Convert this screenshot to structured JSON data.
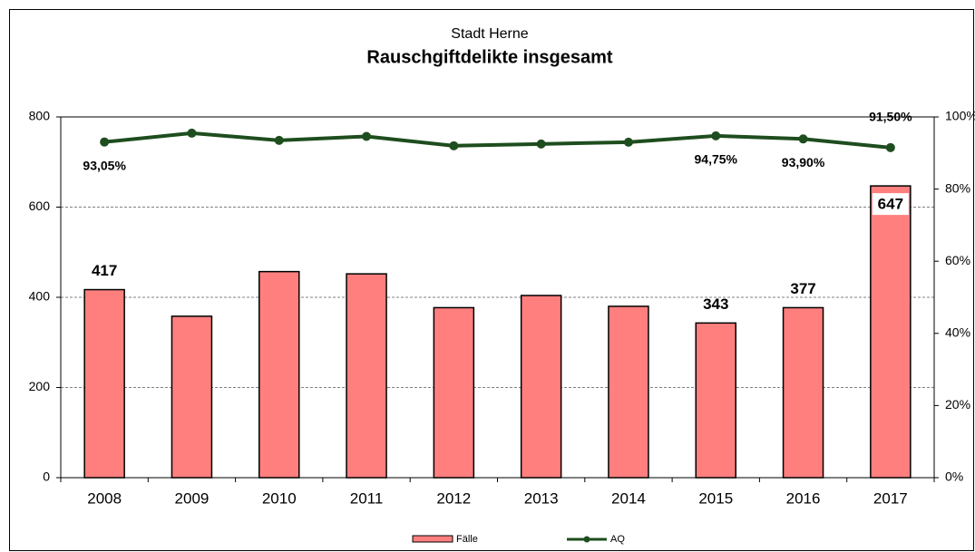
{
  "chart_data": {
    "type": "bar_line",
    "subtitle": "Stadt Herne",
    "title": "Rauschgiftdelikte insgesamt",
    "categories": [
      "2008",
      "2009",
      "2010",
      "2011",
      "2012",
      "2013",
      "2014",
      "2015",
      "2016",
      "2017"
    ],
    "series": [
      {
        "name": "Fälle",
        "color": "#ff7f7f",
        "type": "bar",
        "values": [
          417,
          358,
          457,
          452,
          377,
          404,
          380,
          343,
          377,
          647
        ],
        "value_labels": [
          "417",
          null,
          null,
          null,
          null,
          null,
          null,
          "343",
          "377",
          "647"
        ]
      },
      {
        "name": "AQ",
        "color": "#1e4d1e",
        "type": "line",
        "axis": "y2",
        "values": [
          93.05,
          95.5,
          93.5,
          94.6,
          92.0,
          92.5,
          93.0,
          94.75,
          93.9,
          91.5
        ],
        "value_labels": [
          "93,05%",
          null,
          null,
          null,
          null,
          null,
          null,
          "94,75%",
          "93,90%",
          "91,50%"
        ]
      }
    ],
    "ylim": [
      0,
      800
    ],
    "yticks": [
      0,
      200,
      400,
      600,
      800
    ],
    "y2lim": [
      0,
      100
    ],
    "y2ticks": [
      {
        "value": 0,
        "label": "0%"
      },
      {
        "value": 20,
        "label": "20%"
      },
      {
        "value": 40,
        "label": "40%"
      },
      {
        "value": 60,
        "label": "60%"
      },
      {
        "value": 80,
        "label": "80%"
      },
      {
        "value": 100,
        "label": "100%"
      }
    ],
    "grid": true,
    "legend": "bottom"
  }
}
